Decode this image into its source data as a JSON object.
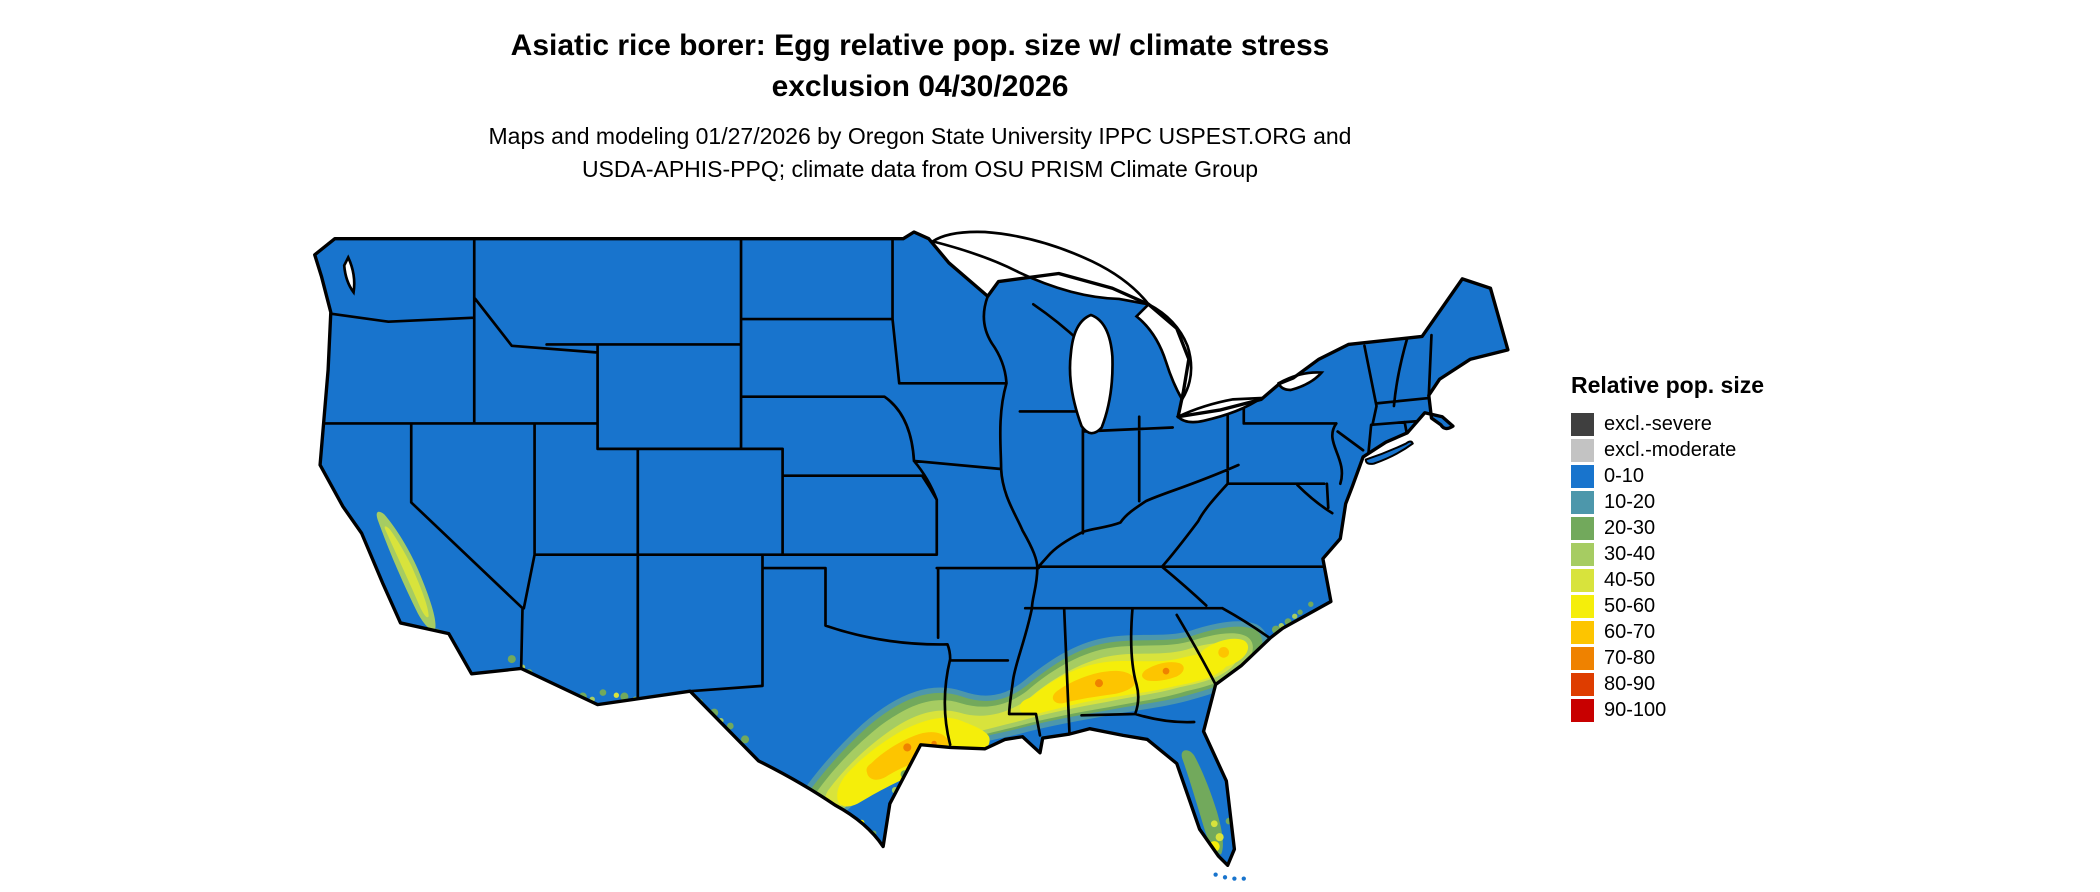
{
  "title": {
    "line1": "Asiatic rice borer: Egg relative pop. size w/ climate stress",
    "line2": "exclusion 04/30/2026"
  },
  "subtitle": {
    "line1": "Maps and modeling 01/27/2026 by Oregon State University IPPC USPEST.ORG and",
    "line2": "USDA-APHIS-PPQ; climate data from OSU PRISM Climate Group"
  },
  "legend": {
    "title": "Relative pop. size",
    "items": [
      {
        "label": "excl.-severe",
        "color": "#3f3f3f"
      },
      {
        "label": "excl.-moderate",
        "color": "#c3c3c3"
      },
      {
        "label": "0-10",
        "color": "#1874cd"
      },
      {
        "label": "10-20",
        "color": "#4d97ab"
      },
      {
        "label": "20-30",
        "color": "#72a95c"
      },
      {
        "label": "30-40",
        "color": "#a6cc62"
      },
      {
        "label": "40-50",
        "color": "#d8e33c"
      },
      {
        "label": "50-60",
        "color": "#f5ee0a"
      },
      {
        "label": "60-70",
        "color": "#fdc500"
      },
      {
        "label": "70-80",
        "color": "#ef8200"
      },
      {
        "label": "80-90",
        "color": "#de3d00"
      },
      {
        "label": "90-100",
        "color": "#c80000"
      }
    ]
  },
  "map": {
    "border_color": "#000000",
    "water_color": "#ffffff"
  }
}
